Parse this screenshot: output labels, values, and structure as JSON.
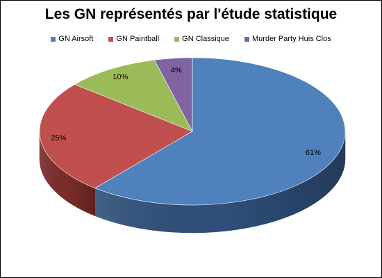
{
  "chart_data": {
    "type": "pie",
    "title": "Les GN représentés par l'étude statistique",
    "legend_position": "top",
    "series": [
      {
        "name": "GN Airsoft",
        "value": 61,
        "label": "61%",
        "color": "#4f81bd",
        "side_color": "#2f4f79"
      },
      {
        "name": "GN Paintball",
        "value": 25,
        "label": "25%",
        "color": "#c0504d",
        "side_color": "#7b2c2a"
      },
      {
        "name": "GN Classique",
        "value": 10,
        "label": "10%",
        "color": "#9bbb59",
        "side_color": "#627838"
      },
      {
        "name": "Murder Party Huis Clos",
        "value": 4,
        "label": "4%",
        "color": "#8064a2",
        "side_color": "#4f3c66"
      }
    ]
  }
}
